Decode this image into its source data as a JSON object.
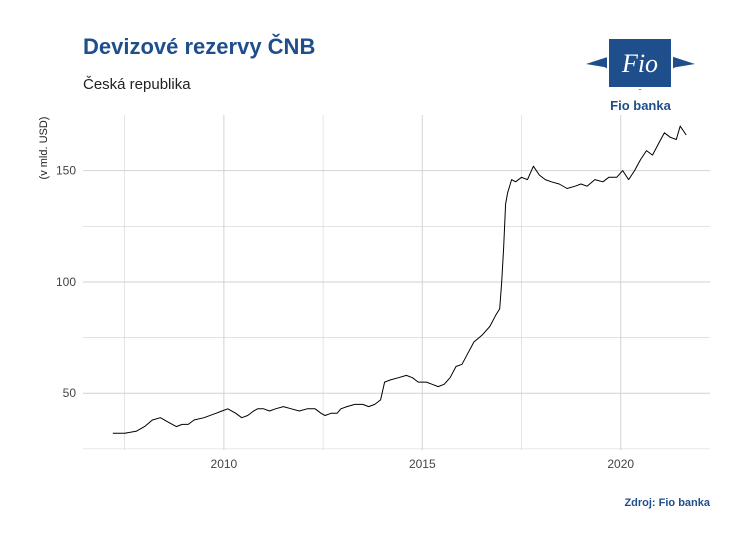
{
  "header": {
    "title": "Devizové rezervy ČNB",
    "subtitle": "Česká republika"
  },
  "footer": {
    "source": "Zdroj: Fio banka"
  },
  "logo": {
    "mark_text": "Fio",
    "name": "Fio banka"
  },
  "colors": {
    "brand": "#1f4e8c",
    "line": "#000000",
    "grid": "#d2d2d2"
  },
  "chart_data": {
    "type": "line",
    "title": "Devizové rezervy ČNB",
    "subtitle": "Česká republika",
    "xlabel": "",
    "ylabel": "(v mld. USD)",
    "xlim": [
      2006.45,
      2022.25
    ],
    "ylim": [
      24.5,
      175
    ],
    "xticks": [
      2010,
      2015,
      2020
    ],
    "xtick_labels": [
      "2010",
      "2015",
      "2020"
    ],
    "yticks": [
      50,
      100,
      150
    ],
    "ytick_labels": [
      "50",
      "100",
      "150"
    ],
    "grid": true,
    "legend": "none",
    "series": [
      {
        "x": [
          2007.2,
          2007.5,
          2007.8,
          2008.0,
          2008.2,
          2008.4,
          2008.6,
          2008.8,
          2008.95,
          2009.1,
          2009.25,
          2009.5,
          2009.8,
          2009.95,
          2010.1,
          2010.3,
          2010.45,
          2010.6,
          2010.75,
          2010.85,
          2011.0,
          2011.15,
          2011.3,
          2011.5,
          2011.7,
          2011.9,
          2012.1,
          2012.3,
          2012.45,
          2012.55,
          2012.7,
          2012.85,
          2012.95,
          2013.1,
          2013.3,
          2013.5,
          2013.65,
          2013.8,
          2013.95,
          2014.05,
          2014.2,
          2014.4,
          2014.6,
          2014.75,
          2014.9,
          2015.1,
          2015.25,
          2015.4,
          2015.55,
          2015.7,
          2015.85,
          2016.0,
          2016.15,
          2016.3,
          2016.5,
          2016.7,
          2016.85,
          2016.95,
          2017.0,
          2017.05,
          2017.1,
          2017.15,
          2017.25,
          2017.35,
          2017.5,
          2017.65,
          2017.8,
          2017.95,
          2018.1,
          2018.25,
          2018.45,
          2018.65,
          2018.85,
          2019.0,
          2019.15,
          2019.35,
          2019.55,
          2019.7,
          2019.9,
          2020.05,
          2020.2,
          2020.35,
          2020.5,
          2020.65,
          2020.8,
          2020.95,
          2021.1,
          2021.25,
          2021.4,
          2021.5,
          2021.65
        ],
        "y": [
          32,
          32,
          33,
          35,
          38,
          39,
          37,
          35,
          36,
          36,
          38,
          39,
          41,
          42,
          43,
          41,
          39,
          40,
          42,
          43,
          43,
          42,
          43,
          44,
          43,
          42,
          43,
          43,
          41,
          40,
          41,
          41,
          43,
          44,
          45,
          45,
          44,
          45,
          47,
          55,
          56,
          57,
          58,
          57,
          55,
          55,
          54,
          53,
          54,
          57,
          62,
          63,
          68,
          73,
          76,
          80,
          85,
          88,
          100,
          115,
          135,
          140,
          146,
          145,
          147,
          146,
          152,
          148,
          146,
          145,
          144,
          142,
          143,
          144,
          143,
          146,
          145,
          147,
          147,
          150,
          146,
          150,
          155,
          159,
          157,
          162,
          167,
          165,
          164,
          170,
          166
        ]
      }
    ]
  }
}
